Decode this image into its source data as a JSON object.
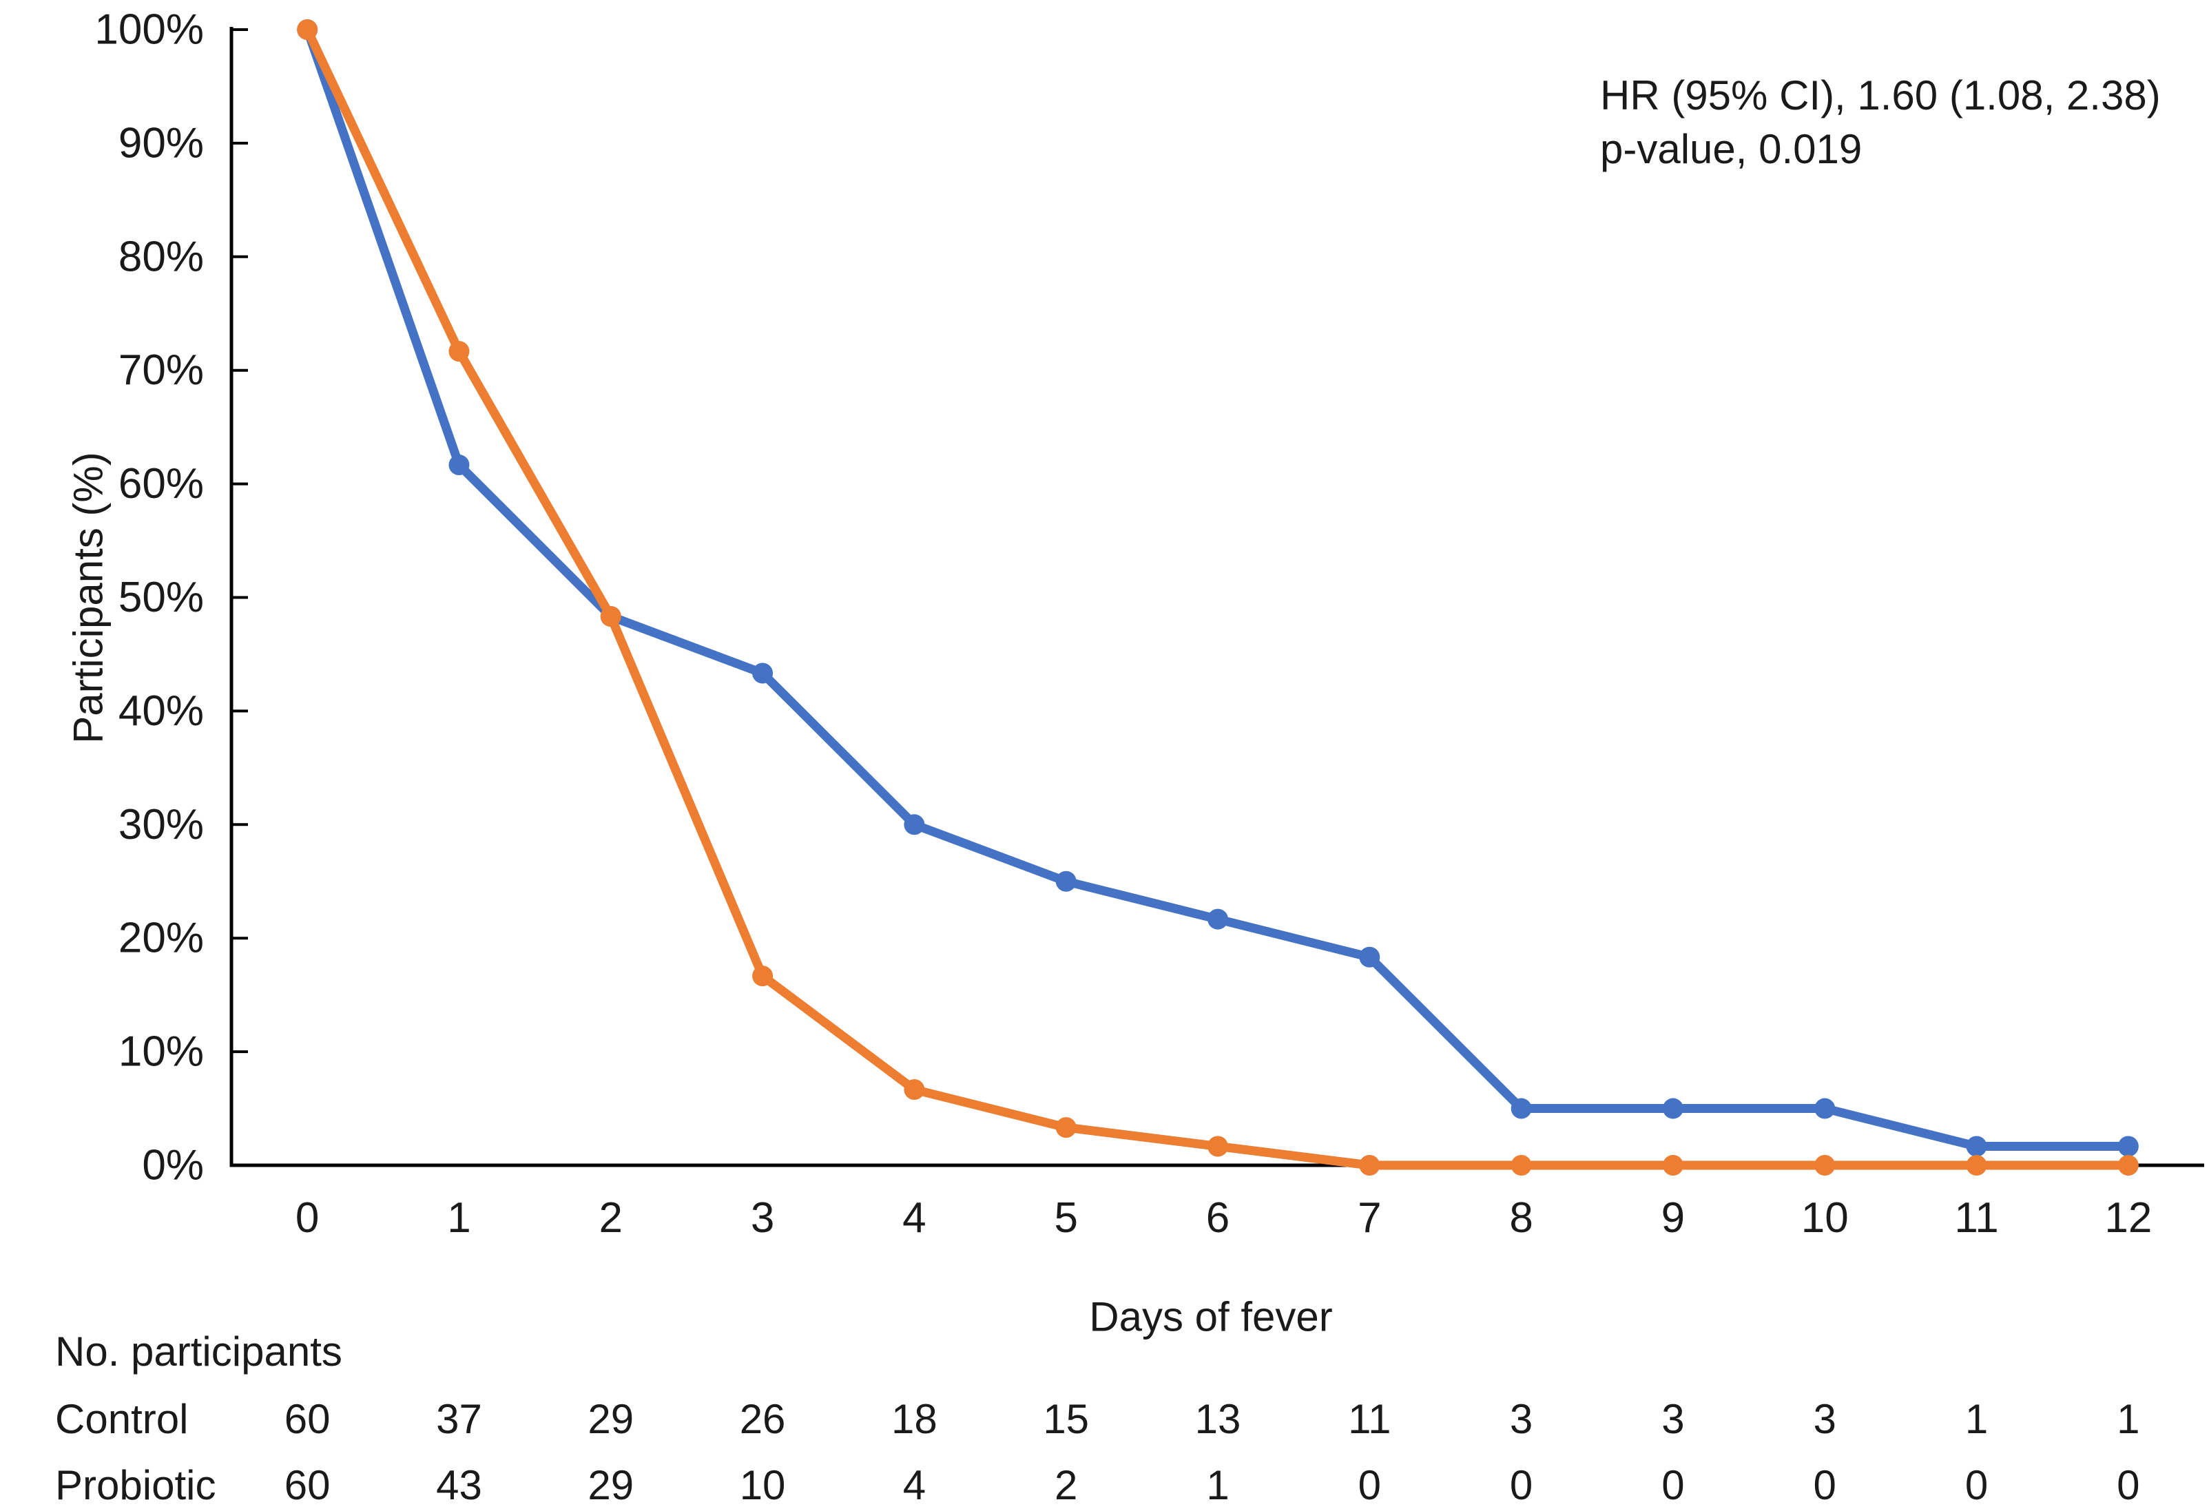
{
  "chart_data": {
    "type": "line",
    "title": "",
    "xlabel": "Days of fever",
    "ylabel": "Participants (%)",
    "x_categories": [
      "0",
      "1",
      "2",
      "3",
      "4",
      "5",
      "6",
      "7",
      "8",
      "9",
      "10",
      "11",
      "12"
    ],
    "y_tick_percents": [
      0,
      10,
      20,
      30,
      40,
      50,
      60,
      70,
      80,
      90,
      100
    ],
    "y_tick_labels": [
      "0%",
      "10%",
      "20%",
      "30%",
      "40%",
      "50%",
      "60%",
      "70%",
      "80%",
      "90%",
      "100%"
    ],
    "ylim": [
      0,
      100
    ],
    "grid": false,
    "legend_position": "none",
    "series": [
      {
        "name": "Control",
        "color": "#4472C4",
        "values_percent": [
          100,
          61.67,
          48.33,
          43.33,
          30,
          25,
          21.67,
          18.33,
          5,
          5,
          5,
          1.67,
          1.67
        ]
      },
      {
        "name": "Probiotic",
        "color": "#ED7D31",
        "values_percent": [
          100,
          71.67,
          48.33,
          16.67,
          6.67,
          3.33,
          1.67,
          0,
          0,
          0,
          0,
          0,
          0
        ]
      }
    ],
    "annotation": {
      "line1": "HR (95% CI), 1.60 (1.08, 2.38)",
      "line2": "p-value, 0.019"
    },
    "at_risk_table": {
      "header": "No. participants",
      "rows": [
        {
          "label": "Control",
          "counts": [
            "60",
            "37",
            "29",
            "26",
            "18",
            "15",
            "13",
            "11",
            "3",
            "3",
            "3",
            "1",
            "1"
          ]
        },
        {
          "label": "Probiotic",
          "counts": [
            "60",
            "43",
            "29",
            "10",
            "4",
            "2",
            "1",
            "0",
            "0",
            "0",
            "0",
            "0",
            "0"
          ]
        }
      ]
    },
    "colors": {
      "axis": "#000000",
      "text": "#1a1a1a",
      "background": "#ffffff"
    }
  }
}
